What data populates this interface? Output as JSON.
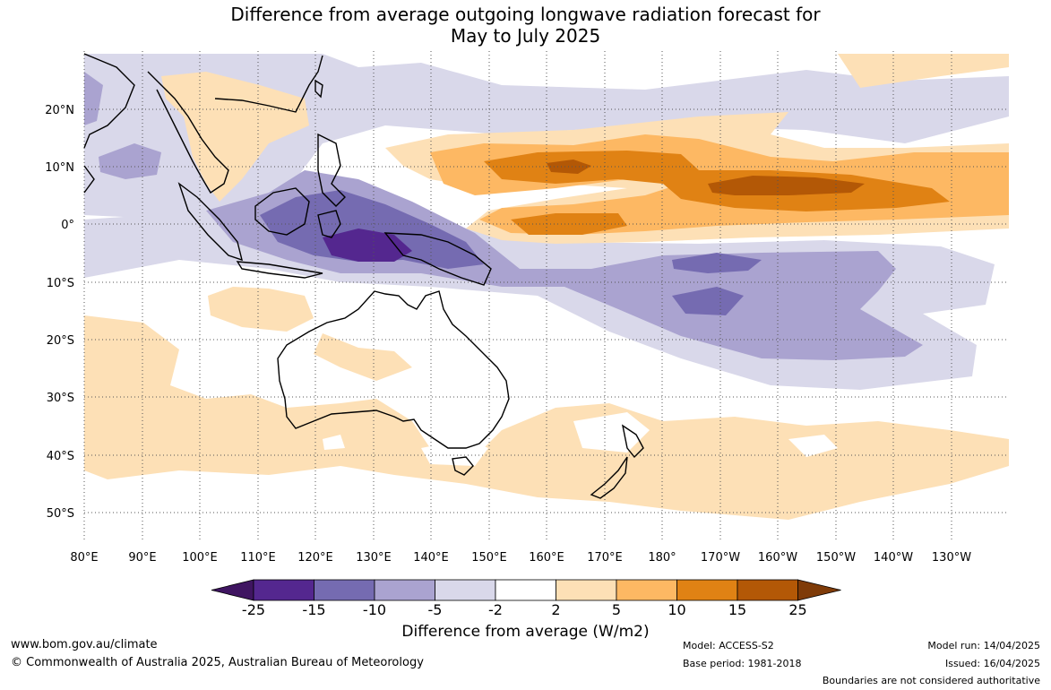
{
  "title": {
    "line1": "Difference from average outgoing longwave radiation forecast for",
    "line2": "May to July 2025"
  },
  "map": {
    "lat_labels": [
      "20°N",
      "10°N",
      "0°",
      "10°S",
      "20°S",
      "30°S",
      "40°S",
      "50°S"
    ],
    "lon_labels": [
      "80°E",
      "90°E",
      "100°E",
      "110°E",
      "120°E",
      "130°E",
      "140°E",
      "150°E",
      "160°E",
      "170°E",
      "180°",
      "170°W",
      "160°W",
      "150°W",
      "140°W",
      "130°W"
    ]
  },
  "colorbar": {
    "ticks": [
      "-25",
      "-15",
      "-10",
      "-5",
      "-2",
      "2",
      "5",
      "10",
      "15",
      "25"
    ],
    "colors": [
      "#3f1561",
      "#54278f",
      "#756bb1",
      "#aaa3d0",
      "#d9d8ea",
      "#ffffff",
      "#fde0b6",
      "#fdb863",
      "#e08214",
      "#b35806",
      "#7f3b08"
    ],
    "title": "Difference from average (W/m2)"
  },
  "footer": {
    "url": "www.bom.gov.au/climate",
    "copyright": "© Commonwealth of Australia 2025, Australian Bureau of Meteorology",
    "model": "Model: ACCESS-S2",
    "base_period": "Base period: 1981-2018",
    "model_run": "Model run: 14/04/2025",
    "issued": "Issued: 16/04/2025",
    "disclaimer": "Boundaries are not considered authoritative"
  }
}
